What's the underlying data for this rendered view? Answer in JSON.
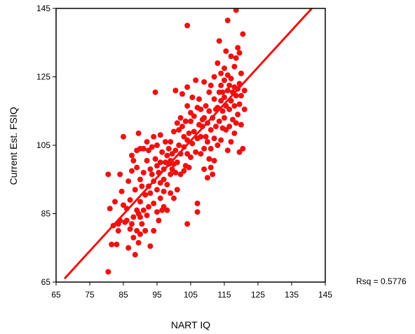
{
  "chart_data": {
    "type": "scatter",
    "title": "",
    "xlabel": "NART IQ",
    "ylabel": "Current Est. FSIQ",
    "xlim": [
      65,
      145
    ],
    "ylim": [
      65,
      145
    ],
    "xticks": [
      65,
      75,
      85,
      95,
      105,
      115,
      125,
      135,
      145
    ],
    "yticks": [
      65,
      85,
      105,
      125,
      145
    ],
    "grid": false,
    "legend": "none",
    "annotation": "Rsq = 0.5776",
    "colors": {
      "points": "#ee1111",
      "fit_line": "#ee1111",
      "axes": "#000000"
    },
    "fit_line": {
      "x": [
        67.5,
        141
      ],
      "y": [
        66,
        145
      ]
    },
    "points": [
      [
        80.5,
        68
      ],
      [
        80.5,
        96.5
      ],
      [
        81,
        86.5
      ],
      [
        81.5,
        76
      ],
      [
        82,
        81.5
      ],
      [
        82.5,
        88.5
      ],
      [
        83,
        76
      ],
      [
        83.5,
        80
      ],
      [
        83.5,
        82
      ],
      [
        84,
        83
      ],
      [
        84,
        96.5
      ],
      [
        84.5,
        91.5
      ],
      [
        85,
        107.5
      ],
      [
        85,
        87.5
      ],
      [
        85.5,
        82.5
      ],
      [
        86,
        83
      ],
      [
        86,
        86.5
      ],
      [
        86.5,
        75
      ],
      [
        86.5,
        94.5
      ],
      [
        87,
        80.5
      ],
      [
        87,
        89
      ],
      [
        87.5,
        82
      ],
      [
        87.5,
        97.5
      ],
      [
        87.5,
        102
      ],
      [
        88,
        78
      ],
      [
        88,
        84
      ],
      [
        88,
        100.5
      ],
      [
        88.5,
        73
      ],
      [
        88.5,
        92
      ],
      [
        89,
        80
      ],
      [
        89,
        86
      ],
      [
        89,
        98.5
      ],
      [
        89,
        103.5
      ],
      [
        89.5,
        76.5
      ],
      [
        89.5,
        85
      ],
      [
        89.5,
        108.5
      ],
      [
        90,
        79
      ],
      [
        90,
        84
      ],
      [
        90,
        88.5
      ],
      [
        90,
        95
      ],
      [
        90,
        104
      ],
      [
        90.5,
        82
      ],
      [
        90.5,
        93
      ],
      [
        91,
        86
      ],
      [
        91,
        97
      ],
      [
        91,
        104
      ],
      [
        91.5,
        80
      ],
      [
        91.5,
        90.5
      ],
      [
        92,
        84.5
      ],
      [
        92,
        100.5
      ],
      [
        92,
        106
      ],
      [
        92.5,
        87
      ],
      [
        92.5,
        93
      ],
      [
        92.5,
        103.5
      ],
      [
        93,
        75.5
      ],
      [
        93,
        91
      ],
      [
        93,
        98
      ],
      [
        93.5,
        96.5
      ],
      [
        93.5,
        104.5
      ],
      [
        94,
        80
      ],
      [
        94,
        88
      ],
      [
        94,
        94.5
      ],
      [
        94,
        107.5
      ],
      [
        94.5,
        101
      ],
      [
        94.5,
        120.5
      ],
      [
        95,
        85.5
      ],
      [
        95,
        92
      ],
      [
        95,
        99
      ],
      [
        95,
        105
      ],
      [
        95.5,
        83
      ],
      [
        95.5,
        97
      ],
      [
        96,
        89.5
      ],
      [
        96,
        94
      ],
      [
        96,
        100
      ],
      [
        96,
        108
      ],
      [
        96.5,
        86
      ],
      [
        96.5,
        103
      ],
      [
        97,
        87
      ],
      [
        97,
        91.5
      ],
      [
        97,
        95
      ],
      [
        97,
        98
      ],
      [
        97.5,
        100
      ],
      [
        97.5,
        106
      ],
      [
        98,
        86
      ],
      [
        98,
        93.5
      ],
      [
        98,
        102
      ],
      [
        98.5,
        99.5
      ],
      [
        98.5,
        104
      ],
      [
        99,
        91
      ],
      [
        99,
        96.5
      ],
      [
        99,
        100.5
      ],
      [
        99,
        106
      ],
      [
        99.5,
        98
      ],
      [
        99.5,
        102.5
      ],
      [
        100,
        89.5
      ],
      [
        100,
        99.5
      ],
      [
        100,
        109
      ],
      [
        100.5,
        97
      ],
      [
        100.5,
        103.5
      ],
      [
        100.5,
        121
      ],
      [
        101,
        92
      ],
      [
        101,
        100
      ],
      [
        101,
        111.5
      ],
      [
        101.5,
        105
      ],
      [
        101.5,
        109.5
      ],
      [
        102,
        96.5
      ],
      [
        102,
        102.5
      ],
      [
        102,
        113
      ],
      [
        102.5,
        110.5
      ],
      [
        102.5,
        120
      ],
      [
        103,
        97.5
      ],
      [
        103,
        104.5
      ],
      [
        103,
        107.5
      ],
      [
        103.5,
        99
      ],
      [
        103.5,
        112
      ],
      [
        104,
        82
      ],
      [
        104,
        102.5
      ],
      [
        104,
        106.5
      ],
      [
        104,
        116.5
      ],
      [
        104,
        122
      ],
      [
        104,
        140
      ],
      [
        104.5,
        98.5
      ],
      [
        104.5,
        108.5
      ],
      [
        105,
        101.5
      ],
      [
        105,
        112
      ],
      [
        105,
        114.5
      ],
      [
        105.5,
        105.5
      ],
      [
        105.5,
        119
      ],
      [
        106,
        109
      ],
      [
        106,
        113.5
      ],
      [
        106.5,
        103
      ],
      [
        106.5,
        124
      ],
      [
        107,
        85.5
      ],
      [
        107,
        88
      ],
      [
        107,
        107
      ],
      [
        107,
        116
      ],
      [
        107.5,
        111
      ],
      [
        107.5,
        118.5
      ],
      [
        108,
        102.5
      ],
      [
        108,
        107.5
      ],
      [
        108,
        115.5
      ],
      [
        108.5,
        110.5
      ],
      [
        108.5,
        112.5
      ],
      [
        109,
        98
      ],
      [
        109,
        104
      ],
      [
        109,
        113
      ],
      [
        109,
        123.5
      ],
      [
        109.5,
        107.5
      ],
      [
        109.5,
        116.5
      ],
      [
        110,
        95.5
      ],
      [
        110,
        106
      ],
      [
        110,
        111.5
      ],
      [
        110.5,
        101
      ],
      [
        110.5,
        115
      ],
      [
        110.5,
        120.5
      ],
      [
        111,
        98.5
      ],
      [
        111,
        104
      ],
      [
        111,
        109.5
      ],
      [
        111,
        122.5
      ],
      [
        111.5,
        96.5
      ],
      [
        111.5,
        113
      ],
      [
        112,
        100.5
      ],
      [
        112,
        107
      ],
      [
        112,
        118.5
      ],
      [
        112,
        125
      ],
      [
        112.5,
        110.5
      ],
      [
        112.5,
        115.5
      ],
      [
        113,
        105
      ],
      [
        113,
        116
      ],
      [
        113,
        129
      ],
      [
        113.5,
        112
      ],
      [
        113.5,
        120.5
      ],
      [
        113.5,
        135.5
      ],
      [
        114,
        106.5
      ],
      [
        114,
        118
      ],
      [
        114,
        122.5
      ],
      [
        114,
        126
      ],
      [
        114.5,
        110
      ],
      [
        114.5,
        115
      ],
      [
        114.5,
        120.5
      ],
      [
        115,
        113
      ],
      [
        115,
        119
      ],
      [
        115,
        124
      ],
      [
        115,
        127.5
      ],
      [
        115.5,
        109.5
      ],
      [
        115.5,
        116.5
      ],
      [
        115.5,
        132.5
      ],
      [
        116,
        103.5
      ],
      [
        116,
        121
      ],
      [
        116,
        125.5
      ],
      [
        116,
        141.5
      ],
      [
        116.5,
        110.5
      ],
      [
        116.5,
        115.5
      ],
      [
        116.5,
        122.5
      ],
      [
        117,
        106
      ],
      [
        117,
        118
      ],
      [
        117,
        124.5
      ],
      [
        117,
        131
      ],
      [
        117.5,
        112.5
      ],
      [
        117.5,
        120.5
      ],
      [
        118,
        108.5
      ],
      [
        118,
        116.5
      ],
      [
        118,
        122
      ],
      [
        118,
        128
      ],
      [
        118.5,
        111.5
      ],
      [
        118.5,
        119.5
      ],
      [
        118.5,
        130.5
      ],
      [
        118.5,
        144.5
      ],
      [
        119,
        114
      ],
      [
        119,
        121.5
      ],
      [
        119,
        133.5
      ],
      [
        119.5,
        103
      ],
      [
        119.5,
        117
      ],
      [
        119.5,
        123
      ],
      [
        119.5,
        132
      ],
      [
        120,
        111
      ],
      [
        120,
        119.5
      ],
      [
        120,
        126
      ],
      [
        120.5,
        104
      ],
      [
        120.5,
        137.5
      ],
      [
        121,
        115.5
      ],
      [
        121,
        121
      ]
    ]
  }
}
